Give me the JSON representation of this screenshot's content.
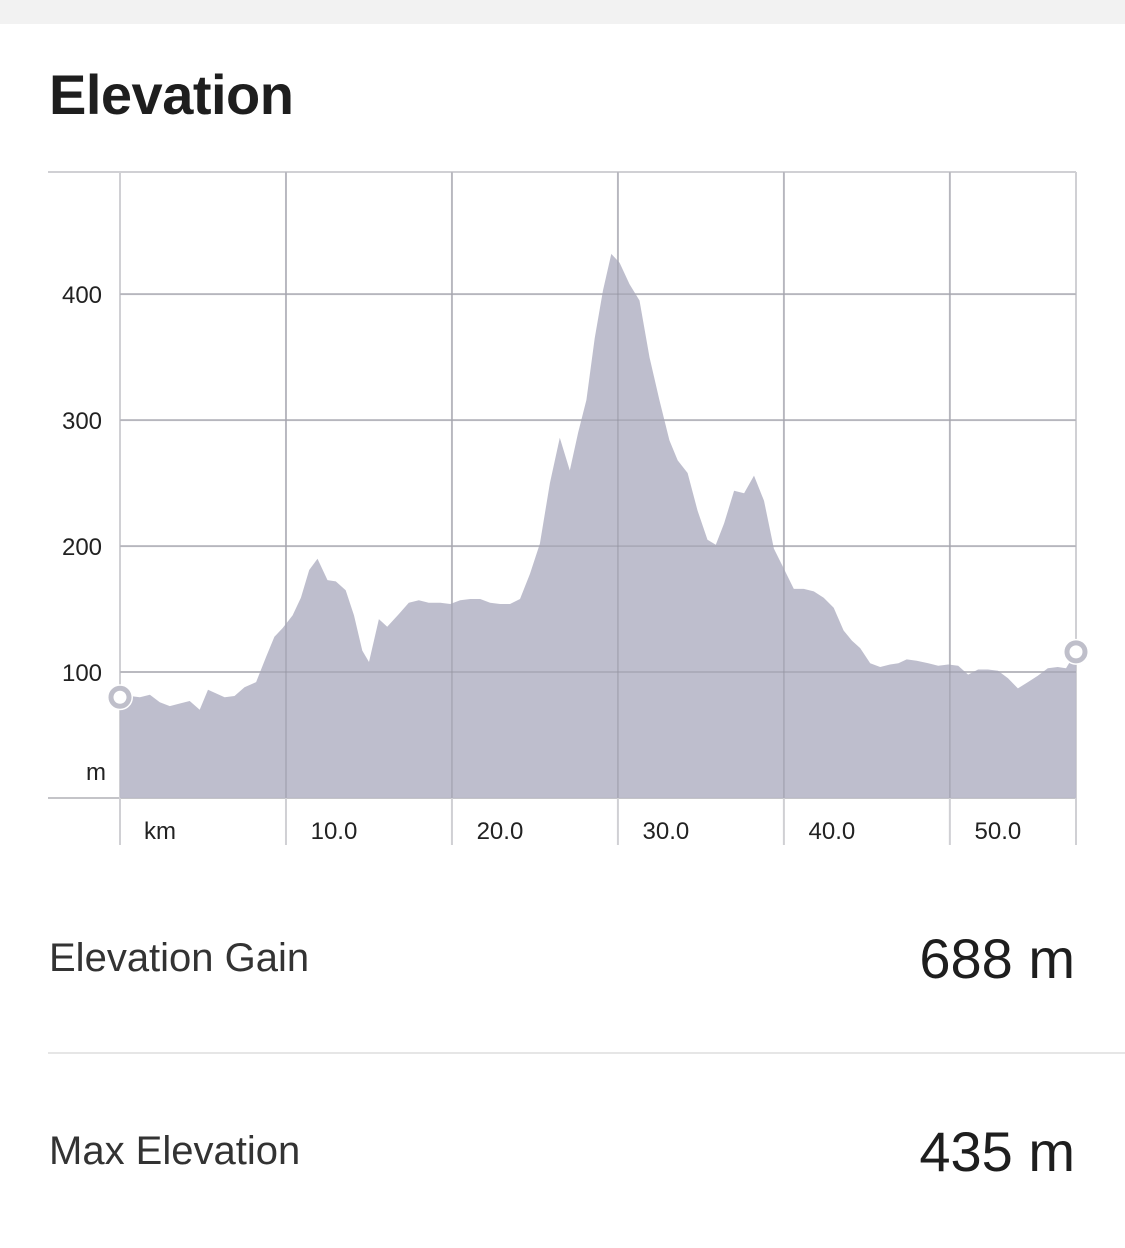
{
  "section": {
    "title": "Elevation"
  },
  "stats": [
    {
      "label": "Elevation Gain",
      "value": "688 m"
    },
    {
      "label": "Max Elevation",
      "value": "435 m"
    }
  ],
  "colors": {
    "area_fill": "#bbbaca",
    "grid": "#d0d0d4",
    "marker": "#bfbfca"
  },
  "chart_data": {
    "type": "area",
    "title": "",
    "xlabel": "",
    "ylabel": "",
    "x_unit": "km",
    "y_unit": "m",
    "xlim": [
      0,
      57.6
    ],
    "ylim": [
      0,
      497
    ],
    "x_ticks": [
      10,
      20,
      30,
      40,
      50
    ],
    "x_tick_labels": [
      "10.0",
      "20.0",
      "30.0",
      "40.0",
      "50.0"
    ],
    "y_ticks": [
      100,
      200,
      300,
      400
    ],
    "y_tick_labels": [
      "100",
      "200",
      "300",
      "400"
    ],
    "grid": true,
    "legend": "none",
    "series": [
      {
        "x": [
          0,
          0.6,
          1.2,
          1.8,
          2.4,
          3.0,
          3.6,
          4.2,
          4.8,
          5.3,
          5.8,
          6.3,
          6.9,
          7.5,
          8.2,
          8.8,
          9.3,
          9.8,
          10.4,
          10.9,
          11.4,
          11.9,
          12.5,
          13.0,
          13.6,
          14.1,
          14.6,
          15.0,
          15.6,
          16.1,
          16.8,
          17.4,
          18.0,
          18.6,
          19.3,
          19.9,
          20.5,
          21.1,
          21.7,
          22.3,
          22.9,
          23.5,
          24.1,
          24.7,
          25.3,
          25.9,
          26.5,
          27.1,
          27.6,
          28.1,
          28.6,
          29.1,
          29.6,
          30.1,
          30.7,
          31.3,
          31.9,
          32.5,
          33.1,
          33.6,
          34.2,
          34.8,
          35.4,
          35.9,
          36.4,
          37.0,
          37.6,
          38.2,
          38.8,
          39.4,
          40.0,
          40.6,
          41.2,
          41.8,
          42.4,
          43.0,
          43.6,
          44.1,
          44.6,
          45.2,
          45.8,
          46.4,
          46.9,
          47.4,
          48.0,
          48.7,
          49.3,
          49.9,
          50.5,
          51.1,
          51.7,
          52.3,
          52.9,
          53.5,
          54.1,
          54.7,
          55.3,
          55.9,
          56.5,
          57.0,
          57.6
        ],
        "y": [
          80,
          81,
          80,
          82,
          76,
          73,
          75,
          77,
          70,
          86,
          83,
          80,
          81,
          88,
          92,
          112,
          128,
          135,
          145,
          159,
          181,
          190,
          173,
          172,
          165,
          145,
          117,
          108,
          142,
          136,
          146,
          155,
          157,
          155,
          155,
          154,
          157,
          158,
          158,
          155,
          154,
          154,
          158,
          178,
          202,
          250,
          286,
          260,
          290,
          316,
          365,
          403,
          432,
          425,
          408,
          395,
          350,
          316,
          284,
          268,
          258,
          228,
          205,
          201,
          218,
          244,
          242,
          256,
          236,
          198,
          182,
          166,
          166,
          164,
          159,
          151,
          133,
          125,
          119,
          107,
          104,
          106,
          107,
          110,
          109,
          107,
          105,
          106,
          105,
          98,
          102,
          102,
          101,
          95,
          87,
          92,
          97,
          103,
          104,
          103,
          116
        ]
      }
    ]
  }
}
